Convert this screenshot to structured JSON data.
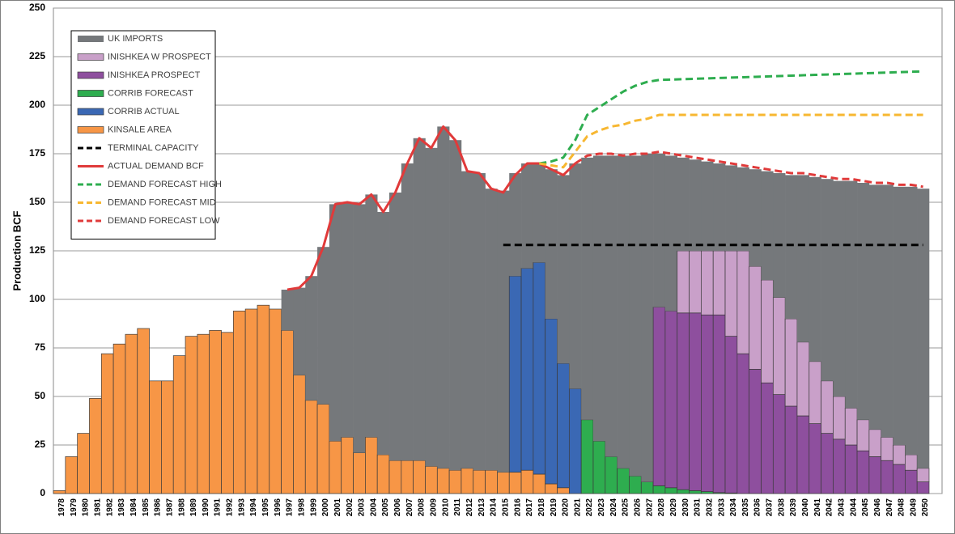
{
  "chart_data": {
    "type": "bar",
    "stacked": true,
    "y_label": "Production BCF",
    "categories": [
      "1978",
      "1979",
      "1980",
      "1981",
      "1982",
      "1983",
      "1984",
      "1985",
      "1986",
      "1987",
      "1988",
      "1989",
      "1990",
      "1991",
      "1992",
      "1993",
      "1994",
      "1995",
      "1996",
      "1997",
      "1998",
      "1999",
      "2000",
      "2001",
      "2002",
      "2003",
      "2004",
      "2005",
      "2006",
      "2007",
      "2008",
      "2009",
      "2010",
      "2011",
      "2012",
      "2013",
      "2014",
      "2015",
      "2016",
      "2017",
      "2018",
      "2019",
      "2020",
      "2021",
      "2022",
      "2023",
      "2024",
      "2025",
      "2026",
      "2027",
      "2028",
      "2029",
      "2030",
      "2031",
      "2032",
      "2033",
      "2034",
      "2035",
      "2036",
      "2037",
      "2038",
      "2039",
      "2040",
      "2041",
      "2042",
      "2043",
      "2044",
      "2045",
      "2046",
      "2047",
      "2048",
      "2049",
      "2050"
    ],
    "ylim": [
      0,
      250
    ],
    "yticks": [
      0,
      25,
      50,
      75,
      100,
      125,
      150,
      175,
      200,
      225,
      250
    ],
    "grid": true,
    "legend": "upper left",
    "series": [
      {
        "name": "UK IMPORTS",
        "kind": "bar",
        "color": "#75787b",
        "values": [
          null,
          null,
          null,
          null,
          null,
          null,
          null,
          null,
          null,
          null,
          null,
          null,
          null,
          null,
          null,
          null,
          null,
          null,
          null,
          21,
          45,
          64,
          81,
          122,
          121,
          128,
          125,
          125,
          138,
          153,
          166,
          164,
          176,
          170,
          153,
          153,
          145,
          145,
          53,
          54,
          51,
          77,
          97,
          116,
          135,
          147,
          155,
          161,
          165,
          169,
          79,
          80,
          48,
          47,
          46,
          45,
          44,
          43,
          50,
          56,
          64,
          74,
          86,
          95,
          104,
          111,
          117,
          122,
          126,
          130,
          133,
          138,
          144
        ]
      },
      {
        "name": "INISHKEA W PROSPECT",
        "kind": "bar",
        "color": "#c9a0c9",
        "values": [
          null,
          null,
          null,
          null,
          null,
          null,
          null,
          null,
          null,
          null,
          null,
          null,
          null,
          null,
          null,
          null,
          null,
          null,
          null,
          null,
          null,
          null,
          null,
          null,
          null,
          null,
          null,
          null,
          null,
          null,
          null,
          null,
          null,
          null,
          null,
          null,
          null,
          null,
          null,
          null,
          null,
          null,
          null,
          null,
          null,
          null,
          null,
          null,
          null,
          null,
          null,
          null,
          32,
          32,
          33,
          33,
          44,
          53,
          53,
          53,
          50,
          45,
          38,
          32,
          27,
          22,
          19,
          16,
          14,
          12,
          10,
          8,
          7
        ]
      },
      {
        "name": "INISHKEA PROSPECT",
        "kind": "bar",
        "color": "#8e4f9e",
        "values": [
          null,
          null,
          null,
          null,
          null,
          null,
          null,
          null,
          null,
          null,
          null,
          null,
          null,
          null,
          null,
          null,
          null,
          null,
          null,
          null,
          null,
          null,
          null,
          null,
          null,
          null,
          null,
          null,
          null,
          null,
          null,
          null,
          null,
          null,
          null,
          null,
          null,
          null,
          null,
          null,
          null,
          null,
          null,
          null,
          null,
          null,
          null,
          null,
          null,
          null,
          92,
          91,
          91,
          91.5,
          91,
          91.5,
          80.7,
          72,
          64,
          57,
          51,
          45,
          40,
          36,
          31,
          28,
          25,
          22,
          19,
          17,
          15,
          12,
          6
        ]
      },
      {
        "name": "CORRIB FORECAST",
        "kind": "bar",
        "color": "#2ead4f",
        "values": [
          null,
          null,
          null,
          null,
          null,
          null,
          null,
          null,
          null,
          null,
          null,
          null,
          null,
          null,
          null,
          null,
          null,
          null,
          null,
          null,
          null,
          null,
          null,
          null,
          null,
          null,
          null,
          null,
          null,
          null,
          null,
          null,
          null,
          null,
          null,
          null,
          null,
          null,
          null,
          null,
          null,
          null,
          null,
          null,
          38,
          27,
          19,
          13,
          9,
          6,
          4,
          3,
          2,
          1.5,
          1,
          0.5,
          0.3,
          null,
          null,
          null,
          null,
          null,
          null,
          null,
          null,
          null,
          null,
          null,
          null,
          null,
          null,
          null,
          null
        ]
      },
      {
        "name": "CORRIB ACTUAL",
        "kind": "bar",
        "color": "#3a68b4",
        "values": [
          null,
          null,
          null,
          null,
          null,
          null,
          null,
          null,
          null,
          null,
          null,
          null,
          null,
          null,
          null,
          null,
          null,
          null,
          null,
          null,
          null,
          null,
          null,
          null,
          null,
          null,
          null,
          null,
          null,
          null,
          null,
          null,
          null,
          null,
          null,
          null,
          null,
          null,
          101,
          104,
          109,
          85,
          64,
          54,
          null,
          null,
          null,
          null,
          null,
          null,
          null,
          null,
          null,
          null,
          null,
          null,
          null,
          null,
          null,
          null,
          null,
          null,
          null,
          null,
          null,
          null,
          null,
          null,
          null,
          null,
          null,
          null,
          null
        ]
      },
      {
        "name": "KINSALE AREA",
        "kind": "bar",
        "color": "#f79646",
        "values": [
          1.5,
          19,
          31,
          49,
          72,
          77,
          82,
          85,
          58,
          58,
          71,
          81,
          82,
          84,
          83,
          94,
          95,
          97,
          95,
          84,
          61,
          48,
          46,
          27,
          29,
          21,
          29,
          20,
          17,
          17,
          17,
          14,
          13,
          12,
          13,
          12,
          12,
          11,
          11,
          12,
          10,
          5,
          3,
          null,
          null,
          null,
          null,
          null,
          null,
          null,
          null,
          null,
          null,
          null,
          null,
          null,
          null,
          null,
          null,
          null,
          null,
          null,
          null,
          null,
          null,
          null,
          null,
          null,
          null,
          null,
          null,
          null,
          null
        ]
      },
      {
        "name": "TERMINAL CAPACITY",
        "kind": "line",
        "dashed": true,
        "color": "#000000",
        "values": [
          null,
          null,
          null,
          null,
          null,
          null,
          null,
          null,
          null,
          null,
          null,
          null,
          null,
          null,
          null,
          null,
          null,
          null,
          null,
          null,
          null,
          null,
          null,
          null,
          null,
          null,
          null,
          null,
          null,
          null,
          null,
          null,
          null,
          null,
          null,
          null,
          null,
          128,
          128,
          128,
          128,
          128,
          128,
          128,
          128,
          128,
          128,
          128,
          128,
          128,
          128,
          128,
          128,
          128,
          128,
          128,
          128,
          128,
          128,
          128,
          128,
          128,
          128,
          128,
          128,
          128,
          128,
          128,
          128,
          128,
          128,
          128,
          128
        ]
      },
      {
        "name": "ACTUAL DEMAND BCF",
        "kind": "line",
        "dashed": false,
        "color": "#e03a3a",
        "values": [
          null,
          null,
          null,
          null,
          null,
          null,
          null,
          null,
          null,
          null,
          null,
          null,
          null,
          null,
          null,
          null,
          null,
          null,
          null,
          105,
          106,
          112,
          127,
          149,
          150,
          149,
          154,
          145,
          155,
          170,
          183,
          178,
          189,
          182,
          166,
          165,
          157,
          155,
          164,
          170,
          170,
          167,
          164,
          170,
          null,
          null,
          null,
          null,
          null,
          null,
          null,
          null,
          null,
          null,
          null,
          null,
          null,
          null,
          null,
          null,
          null,
          null,
          null,
          null,
          null,
          null,
          null,
          null,
          null,
          null,
          null,
          null,
          null
        ]
      },
      {
        "name": "DEMAND FORECAST HIGH",
        "kind": "line",
        "dashed": true,
        "color": "#2ead4f",
        "values": [
          null,
          null,
          null,
          null,
          null,
          null,
          null,
          null,
          null,
          null,
          null,
          null,
          null,
          null,
          null,
          null,
          null,
          null,
          null,
          null,
          null,
          null,
          null,
          null,
          null,
          null,
          null,
          null,
          null,
          null,
          null,
          null,
          null,
          null,
          null,
          null,
          null,
          null,
          null,
          null,
          170,
          171,
          173,
          182,
          195,
          199,
          203,
          207,
          210,
          212,
          213,
          213.2,
          213.4,
          213.6,
          213.8,
          214,
          214.2,
          214.4,
          214.6,
          214.8,
          215,
          215.2,
          215.4,
          215.6,
          215.8,
          216,
          216.2,
          216.4,
          216.6,
          216.8,
          217,
          217.2,
          217.4
        ]
      },
      {
        "name": "DEMAND FORECAST MID",
        "kind": "line",
        "dashed": true,
        "color": "#f7b731",
        "values": [
          null,
          null,
          null,
          null,
          null,
          null,
          null,
          null,
          null,
          null,
          null,
          null,
          null,
          null,
          null,
          null,
          null,
          null,
          null,
          null,
          null,
          null,
          null,
          null,
          null,
          null,
          null,
          null,
          null,
          null,
          null,
          null,
          null,
          null,
          null,
          null,
          null,
          null,
          null,
          null,
          170,
          169,
          168,
          176,
          184,
          187,
          189,
          190,
          192,
          193,
          195,
          195,
          195,
          195,
          195,
          195,
          195,
          195,
          195,
          195,
          195,
          195,
          195,
          195,
          195,
          195,
          195,
          195,
          195,
          195,
          195,
          195,
          195
        ]
      },
      {
        "name": "DEMAND FORECAST LOW",
        "kind": "line",
        "dashed": true,
        "color": "#e03a3a",
        "values": [
          null,
          null,
          null,
          null,
          null,
          null,
          null,
          null,
          null,
          null,
          null,
          null,
          null,
          null,
          null,
          null,
          null,
          null,
          null,
          null,
          null,
          null,
          null,
          null,
          null,
          null,
          null,
          null,
          null,
          null,
          null,
          null,
          null,
          null,
          null,
          null,
          null,
          null,
          null,
          null,
          null,
          null,
          null,
          170,
          174,
          175,
          175,
          174,
          175,
          175,
          176,
          175,
          174,
          173,
          172,
          171,
          170,
          169,
          168,
          167,
          166,
          165,
          165,
          164,
          163,
          162,
          162,
          161,
          160,
          160,
          159,
          159,
          158
        ]
      }
    ]
  }
}
